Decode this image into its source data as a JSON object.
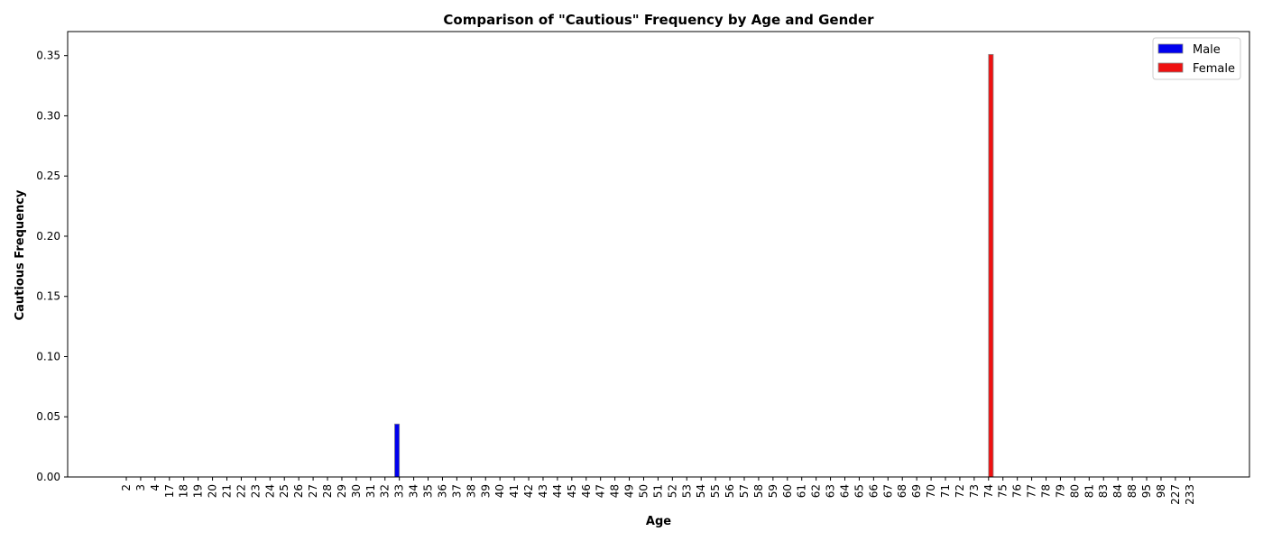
{
  "chart_data": {
    "type": "bar",
    "title": "Comparison of \"Cautious\" Frequency by Age and Gender",
    "xlabel": "Age",
    "ylabel": "Cautious Frequency",
    "ylim": [
      0,
      0.37
    ],
    "yticks": [
      "0.00",
      "0.05",
      "0.10",
      "0.15",
      "0.20",
      "0.25",
      "0.30",
      "0.35"
    ],
    "ytick_values": [
      0,
      0.05,
      0.1,
      0.15,
      0.2,
      0.25,
      0.3,
      0.35
    ],
    "categories": [
      "2",
      "3",
      "4",
      "17",
      "18",
      "19",
      "20",
      "21",
      "22",
      "23",
      "24",
      "25",
      "26",
      "27",
      "28",
      "29",
      "30",
      "31",
      "32",
      "33",
      "34",
      "35",
      "36",
      "37",
      "38",
      "39",
      "40",
      "41",
      "42",
      "43",
      "44",
      "45",
      "46",
      "47",
      "48",
      "49",
      "50",
      "51",
      "52",
      "53",
      "54",
      "55",
      "56",
      "57",
      "58",
      "59",
      "60",
      "61",
      "62",
      "63",
      "64",
      "65",
      "66",
      "67",
      "68",
      "69",
      "70",
      "71",
      "72",
      "73",
      "74",
      "75",
      "76",
      "77",
      "78",
      "79",
      "80",
      "81",
      "83",
      "84",
      "88",
      "95",
      "98",
      "227",
      "233"
    ],
    "series": [
      {
        "name": "Male",
        "color": "#0000ee",
        "values": [
          0,
          0,
          0,
          0,
          0,
          0,
          0,
          0,
          0,
          0,
          0,
          0,
          0,
          0,
          0,
          0,
          0,
          0,
          0,
          0.044,
          0,
          0,
          0,
          0,
          0,
          0,
          0,
          0,
          0,
          0,
          0,
          0,
          0,
          0,
          0,
          0,
          0,
          0,
          0,
          0,
          0,
          0,
          0,
          0,
          0,
          0,
          0,
          0,
          0,
          0,
          0,
          0,
          0,
          0,
          0,
          0,
          0,
          0,
          0,
          0,
          0,
          0,
          0,
          0,
          0,
          0,
          0,
          0,
          0,
          0,
          0,
          0,
          0,
          0,
          0
        ]
      },
      {
        "name": "Female",
        "color": "#ee1111",
        "values": [
          0,
          0,
          0,
          0,
          0,
          0,
          0,
          0,
          0,
          0,
          0,
          0,
          0,
          0,
          0,
          0,
          0,
          0,
          0,
          0,
          0,
          0,
          0,
          0,
          0,
          0,
          0,
          0,
          0,
          0,
          0,
          0,
          0,
          0,
          0,
          0,
          0,
          0,
          0,
          0,
          0,
          0,
          0,
          0,
          0,
          0,
          0,
          0,
          0,
          0,
          0,
          0,
          0,
          0,
          0,
          0,
          0,
          0,
          0,
          0,
          0.351,
          0,
          0,
          0,
          0,
          0,
          0,
          0,
          0,
          0,
          0,
          0,
          0,
          0,
          0
        ]
      }
    ],
    "legend_position": "top-right",
    "grid": false
  }
}
